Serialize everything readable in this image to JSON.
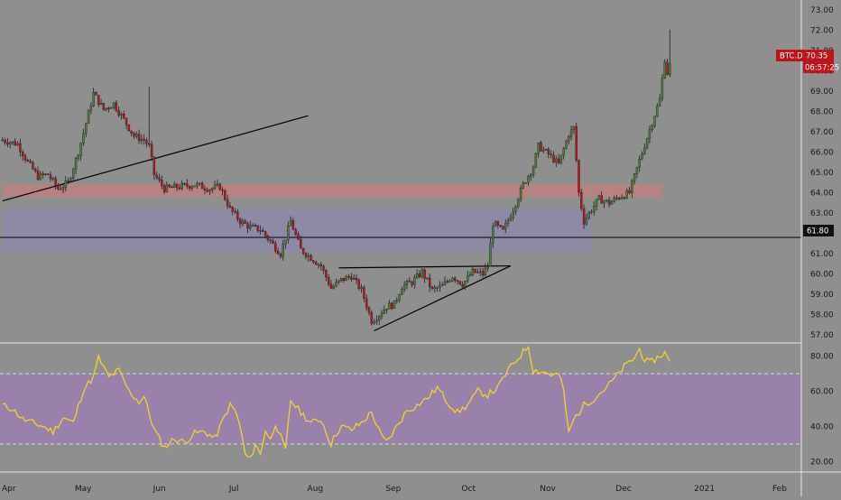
{
  "chart_data": [
    {
      "type": "candlestick",
      "symbol_label": "BTC.D",
      "last_value_label": "70.35",
      "countdown_label": "06:57:25",
      "hline_label": "61.80",
      "ylim": [
        56.6,
        73.5
      ],
      "y_ticks": [
        "57.00",
        "58.00",
        "59.00",
        "60.00",
        "61.00",
        "62.00",
        "63.00",
        "64.00",
        "65.00",
        "66.00",
        "67.00",
        "68.00",
        "69.00",
        "70.00",
        "71.00",
        "72.00",
        "73.00"
      ],
      "x_ticks": [
        "Apr",
        "May",
        "Jun",
        "Jul",
        "Aug",
        "Sep",
        "Oct",
        "Nov",
        "Dec",
        "2021",
        "Feb"
      ],
      "x_tick_days": [
        0,
        30,
        61,
        91,
        122,
        153,
        183,
        214,
        244,
        275,
        306
      ],
      "x_range_days": [
        -1,
        316
      ],
      "colors": {
        "up": "#4f7f3b",
        "down": "#c0141c",
        "wick": "#1f1f1f",
        "background": "#8f8f8f"
      },
      "zones": [
        {
          "from_day": 0,
          "to_day": 261,
          "ylow": 63.8,
          "yhigh": 64.4,
          "color": "#c08080"
        },
        {
          "from_day": 0,
          "to_day": 233,
          "ylow": 61.1,
          "yhigh": 63.2,
          "color": "#8e8aaa"
        }
      ],
      "horizontal_line": {
        "y": 61.8,
        "color": "#111111"
      },
      "trendlines": [
        {
          "points": [
            [
              0,
              63.6
            ],
            [
              121,
              67.8
            ]
          ]
        },
        {
          "points": [
            [
              147,
              57.2
            ],
            [
              201,
              60.4
            ]
          ]
        },
        {
          "points": [
            [
              133,
              60.3
            ],
            [
              201,
              60.4
            ]
          ]
        }
      ],
      "keypoints": [
        [
          0,
          66.6
        ],
        [
          6,
          66.4
        ],
        [
          10,
          65.5
        ],
        [
          14,
          64.8
        ],
        [
          18,
          64.9
        ],
        [
          22,
          64.2
        ],
        [
          26,
          64.5
        ],
        [
          30,
          66.0
        ],
        [
          34,
          67.9
        ],
        [
          36,
          68.9
        ],
        [
          40,
          68.1
        ],
        [
          44,
          68.4
        ],
        [
          48,
          67.6
        ],
        [
          52,
          66.8
        ],
        [
          56,
          66.6
        ],
        [
          58,
          66.3
        ],
        [
          60,
          64.9
        ],
        [
          64,
          64.2
        ],
        [
          70,
          64.3
        ],
        [
          76,
          64.4
        ],
        [
          82,
          64.2
        ],
        [
          86,
          64.3
        ],
        [
          90,
          63.2
        ],
        [
          94,
          62.6
        ],
        [
          98,
          62.3
        ],
        [
          102,
          62.2
        ],
        [
          106,
          61.6
        ],
        [
          110,
          61.0
        ],
        [
          114,
          62.6
        ],
        [
          118,
          61.2
        ],
        [
          122,
          60.8
        ],
        [
          126,
          60.4
        ],
        [
          130,
          59.3
        ],
        [
          134,
          59.7
        ],
        [
          138,
          59.9
        ],
        [
          142,
          59.2
        ],
        [
          146,
          57.7
        ],
        [
          149,
          58.0
        ],
        [
          152,
          58.4
        ],
        [
          155,
          58.5
        ],
        [
          158,
          59.4
        ],
        [
          162,
          59.6
        ],
        [
          166,
          60.1
        ],
        [
          170,
          59.2
        ],
        [
          174,
          59.4
        ],
        [
          178,
          59.9
        ],
        [
          182,
          59.5
        ],
        [
          186,
          60.1
        ],
        [
          190,
          60.0
        ],
        [
          192,
          60.4
        ],
        [
          194,
          62.5
        ],
        [
          198,
          62.1
        ],
        [
          202,
          63.2
        ],
        [
          206,
          64.4
        ],
        [
          210,
          65.3
        ],
        [
          212,
          66.3
        ],
        [
          216,
          65.9
        ],
        [
          220,
          65.4
        ],
        [
          224,
          66.9
        ],
        [
          226,
          67.2
        ],
        [
          228,
          64.0
        ],
        [
          230,
          62.6
        ],
        [
          232,
          63.0
        ],
        [
          236,
          63.7
        ],
        [
          240,
          63.5
        ],
        [
          244,
          63.8
        ],
        [
          248,
          64.0
        ],
        [
          252,
          65.6
        ],
        [
          256,
          67.1
        ],
        [
          260,
          68.6
        ],
        [
          262,
          70.6
        ],
        [
          263,
          69.9
        ],
        [
          264,
          70.35
        ]
      ],
      "candles_per_day": 1
    },
    {
      "type": "line",
      "indicator": "RSI",
      "ylim": [
        14,
        87
      ],
      "y_ticks": [
        "20.00",
        "40.00",
        "60.00",
        "80.00"
      ],
      "bands": {
        "upper": 70,
        "lower": 30,
        "fill": "#9a80ae"
      },
      "line_color": "#f3d12c",
      "keypoints": [
        [
          0,
          52
        ],
        [
          4,
          50
        ],
        [
          8,
          44
        ],
        [
          12,
          42
        ],
        [
          16,
          40
        ],
        [
          20,
          37
        ],
        [
          24,
          45
        ],
        [
          28,
          42
        ],
        [
          32,
          61
        ],
        [
          36,
          68
        ],
        [
          38,
          79
        ],
        [
          42,
          68
        ],
        [
          46,
          72
        ],
        [
          50,
          60
        ],
        [
          54,
          54
        ],
        [
          56,
          57
        ],
        [
          60,
          38
        ],
        [
          64,
          28
        ],
        [
          68,
          33
        ],
        [
          72,
          31
        ],
        [
          76,
          36
        ],
        [
          80,
          37
        ],
        [
          84,
          33
        ],
        [
          88,
          46
        ],
        [
          90,
          52
        ],
        [
          92,
          49
        ],
        [
          94,
          40
        ],
        [
          96,
          24
        ],
        [
          98,
          21
        ],
        [
          100,
          30
        ],
        [
          102,
          24
        ],
        [
          104,
          38
        ],
        [
          106,
          32
        ],
        [
          108,
          42
        ],
        [
          110,
          34
        ],
        [
          112,
          26
        ],
        [
          114,
          55
        ],
        [
          118,
          48
        ],
        [
          122,
          42
        ],
        [
          126,
          44
        ],
        [
          130,
          30
        ],
        [
          132,
          36
        ],
        [
          134,
          40
        ],
        [
          138,
          38
        ],
        [
          142,
          42
        ],
        [
          146,
          48
        ],
        [
          150,
          34
        ],
        [
          152,
          31
        ],
        [
          156,
          40
        ],
        [
          160,
          49
        ],
        [
          164,
          52
        ],
        [
          168,
          56
        ],
        [
          172,
          62
        ],
        [
          176,
          54
        ],
        [
          180,
          48
        ],
        [
          184,
          52
        ],
        [
          188,
          60
        ],
        [
          192,
          58
        ],
        [
          196,
          62
        ],
        [
          200,
          72
        ],
        [
          204,
          79
        ],
        [
          208,
          86
        ],
        [
          210,
          72
        ],
        [
          214,
          71
        ],
        [
          218,
          69
        ],
        [
          220,
          70
        ],
        [
          222,
          60
        ],
        [
          224,
          36
        ],
        [
          226,
          44
        ],
        [
          230,
          52
        ],
        [
          234,
          56
        ],
        [
          238,
          61
        ],
        [
          242,
          67
        ],
        [
          246,
          74
        ],
        [
          250,
          79
        ],
        [
          252,
          84
        ],
        [
          254,
          78
        ],
        [
          256,
          76
        ],
        [
          258,
          78
        ],
        [
          262,
          82
        ],
        [
          264,
          76
        ]
      ]
    }
  ]
}
